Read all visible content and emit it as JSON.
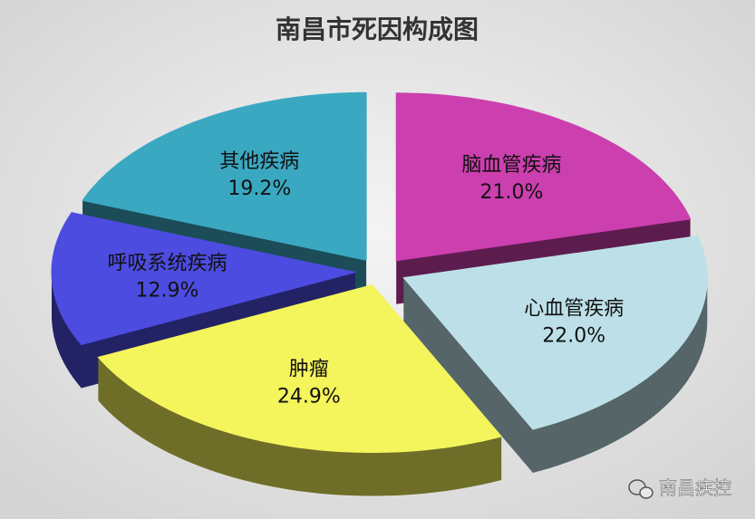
{
  "chart_data": {
    "type": "pie",
    "title": "南昌市死因构成图",
    "categories": [
      "脑血管疾病",
      "心血管疾病",
      "肿瘤",
      "呼吸系统疾病",
      "其他疾病"
    ],
    "values": [
      21.0,
      22.0,
      24.9,
      12.9,
      19.2
    ],
    "value_labels": [
      "21.0%",
      "22.0%",
      "24.9%",
      "12.9%",
      "19.2%"
    ],
    "colors": [
      "#cc3fae",
      "#bde0e8",
      "#f4f45c",
      "#4c4ce0",
      "#3ba8c2"
    ]
  },
  "watermark": "南昌疾控"
}
